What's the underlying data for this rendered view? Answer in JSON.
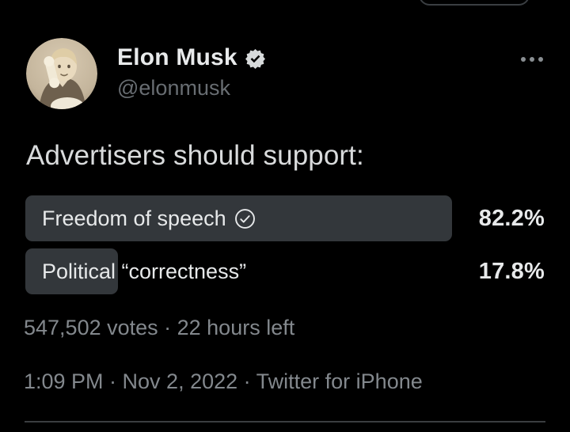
{
  "app": "Twitter",
  "theme": {
    "background": "#000000",
    "text_primary": "#e7e9ea",
    "text_secondary": "#83888d",
    "handle_gray": "#686d72",
    "poll_bar_fill": "#33373b",
    "divider": "#3a3d40",
    "badge_color": "#d7dadb"
  },
  "header": {
    "display_name": "Elon Musk",
    "verified": true,
    "handle": "@elonmusk"
  },
  "tweet": {
    "text": "Advertisers should support:"
  },
  "poll": {
    "options": [
      {
        "label": "Freedom of speech",
        "percent_label": "82.2%",
        "percent_value": 82.2,
        "chosen": true
      },
      {
        "label": "Political “correctness”",
        "percent_label": "17.8%",
        "percent_value": 17.8,
        "chosen": false
      }
    ],
    "meta": "547,502 votes · 22 hours left"
  },
  "footer": {
    "timestamp": "1:09 PM · Nov 2, 2022 · Twitter for iPhone"
  },
  "chart_data": {
    "type": "bar",
    "title": "Advertisers should support:",
    "categories": [
      "Freedom of speech",
      "Political “correctness”"
    ],
    "values": [
      82.2,
      17.8
    ],
    "total_votes": "547,502",
    "time_left": "22 hours left"
  }
}
